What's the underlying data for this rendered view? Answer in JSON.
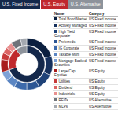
{
  "chart_data": {
    "type": "pie",
    "groups": {
      "labels": [
        "U.S. Fixed Income",
        "U.S. Equity",
        "U.S. Alternative"
      ],
      "values": [
        70,
        20,
        10
      ],
      "colors": [
        "#14284b",
        "#c0282d",
        "#8d939b"
      ]
    },
    "holdings": {
      "columns": [
        "Name",
        "Category"
      ],
      "rows": [
        [
          "Total Bond Market",
          "US Fixed Income"
        ],
        [
          "Actively Managed",
          "US Fixed Income"
        ],
        [
          "High Yield Corporate",
          "US Fixed Income"
        ],
        [
          "Preferreds",
          "US Fixed Income"
        ],
        [
          "IG Corporate",
          "US Fixed Income"
        ],
        [
          "Taxable Muni",
          "US Fixed Income"
        ],
        [
          "Mortgage Backed Securities",
          "US Fixed Income"
        ],
        [
          "Large Cap Equities",
          "US Equity"
        ],
        [
          "Utilities",
          "US Equity"
        ],
        [
          "Dividend",
          "US Equity"
        ],
        [
          "Industrials",
          "US Equity"
        ],
        [
          "REITs",
          "US Alternative"
        ],
        [
          "MLPs",
          "US Alternative"
        ]
      ],
      "values": [
        20,
        12,
        10,
        8,
        8,
        6,
        6,
        8,
        4,
        4,
        4,
        6,
        4
      ],
      "colors": [
        "#0b1f3f",
        "#16305c",
        "#1f4278",
        "#2c5694",
        "#3d6aab",
        "#5a85c2",
        "#7da1d6",
        "#a81c1c",
        "#c73a3a",
        "#db6464",
        "#e89090",
        "#6e737a",
        "#a4a9b0"
      ]
    }
  }
}
